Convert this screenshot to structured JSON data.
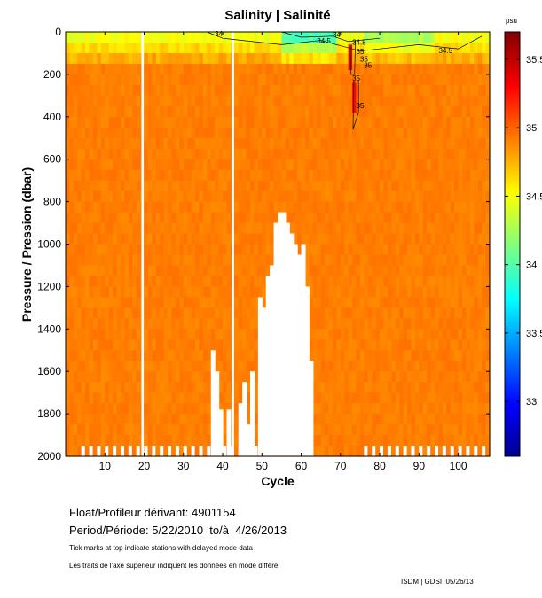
{
  "chart_data": {
    "type": "heatmap",
    "title": "Salinity | Salinité",
    "xlabel": "Cycle",
    "ylabel": "Pressure / Pression (dbar)",
    "xlim": [
      0,
      108
    ],
    "ylim": [
      2000,
      0
    ],
    "x_ticks": [
      10,
      20,
      30,
      40,
      50,
      60,
      70,
      80,
      90,
      100
    ],
    "x_tick_labels": [
      "10",
      "20",
      "30",
      "40",
      "50",
      "60",
      "70",
      "80",
      "90",
      "100"
    ],
    "y_ticks": [
      0,
      200,
      400,
      600,
      800,
      1000,
      1200,
      1400,
      1600,
      1800,
      2000
    ],
    "y_tick_labels": [
      "0",
      "200",
      "400",
      "600",
      "800",
      "1000",
      "1200",
      "1400",
      "1600",
      "1800",
      "2000"
    ],
    "colorbar": {
      "unit": "psu",
      "range": [
        32.6,
        35.7
      ],
      "ticks": [
        33,
        33.5,
        34,
        34.5,
        35,
        35.5
      ],
      "tick_labels": [
        "33",
        "33.5",
        "34",
        "34.5",
        "35",
        "35.5"
      ],
      "colormap": "jet"
    },
    "field": {
      "dominant_value": 34.93,
      "surface_layer_min": 33.8,
      "missing_columns": [
        20,
        43
      ],
      "missing_region_deep": [
        {
          "cycle": 38,
          "pressure_from": 1500
        },
        {
          "cycle": 39,
          "pressure_from": 1600
        },
        {
          "cycle": 40,
          "pressure_from": 1780
        },
        {
          "cycle": 42,
          "pressure_from": 1780
        },
        {
          "cycle": 45,
          "pressure_from": 1750
        },
        {
          "cycle": 46,
          "pressure_from": 1650
        },
        {
          "cycle": 47,
          "pressure_from": 1850
        },
        {
          "cycle": 48,
          "pressure_from": 1600
        },
        {
          "cycle": 50,
          "pressure_from": 1250
        },
        {
          "cycle": 51,
          "pressure_from": 1300
        },
        {
          "cycle": 52,
          "pressure_from": 1150
        },
        {
          "cycle": 53,
          "pressure_from": 1100
        },
        {
          "cycle": 54,
          "pressure_from": 900
        },
        {
          "cycle": 55,
          "pressure_from": 850
        },
        {
          "cycle": 56,
          "pressure_from": 850
        },
        {
          "cycle": 57,
          "pressure_from": 900
        },
        {
          "cycle": 58,
          "pressure_from": 950
        },
        {
          "cycle": 59,
          "pressure_from": 1000
        },
        {
          "cycle": 60,
          "pressure_from": 1050
        },
        {
          "cycle": 61,
          "pressure_from": 1000
        },
        {
          "cycle": 62,
          "pressure_from": 1200
        },
        {
          "cycle": 63,
          "pressure_from": 1550
        }
      ],
      "high_salinity_cells": [
        {
          "cycle": 73,
          "pressure_from": 60,
          "pressure_to": 180,
          "value": 35.4
        },
        {
          "cycle": 74,
          "pressure_from": 240,
          "pressure_to": 380,
          "value": 35.3
        }
      ]
    },
    "contour_labels": [
      "34",
      "34.5",
      "34",
      "34.5",
      "35",
      "35",
      "35",
      "35",
      "35",
      "34.5"
    ],
    "delayed_mode_ticks_note": "Tick marks at top indicate stations with delayed mode data"
  },
  "info": {
    "float_label": "Float/Profileur dérivant:",
    "float_id": "4901154",
    "period_label": "Period/Période:",
    "period_value": "5/22/2010  to/à  4/26/2013",
    "note_en": "Tick marks at top indicate stations with delayed mode data",
    "note_fr": "Les traits de l'axe supérieur indiquent les données en mode différé",
    "credit": "ISDM | GDSI  05/26/13"
  }
}
